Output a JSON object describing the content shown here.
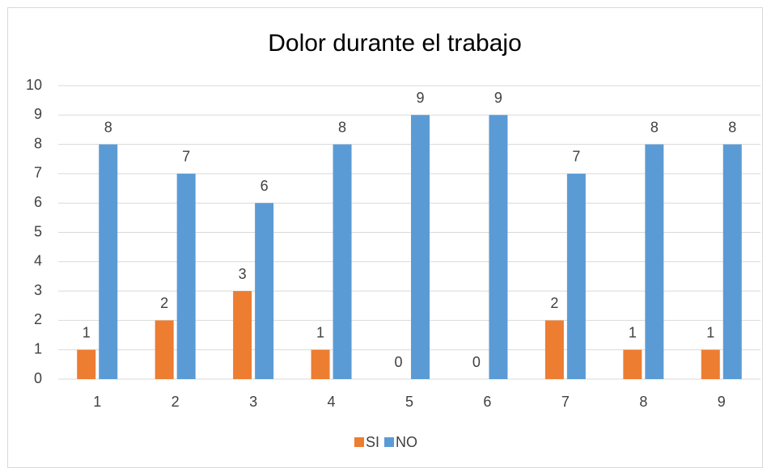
{
  "chart_data": {
    "type": "bar",
    "title": "Dolor durante el trabajo",
    "categories": [
      "1",
      "2",
      "3",
      "4",
      "5",
      "6",
      "7",
      "8",
      "9"
    ],
    "series": [
      {
        "name": "SI",
        "color": "#ed7d31",
        "values": [
          1,
          2,
          3,
          1,
          0,
          0,
          2,
          1,
          1
        ]
      },
      {
        "name": "NO",
        "color": "#5b9bd5",
        "values": [
          8,
          7,
          6,
          8,
          9,
          9,
          7,
          8,
          8
        ]
      }
    ],
    "ylim": [
      0,
      10
    ],
    "yticks": [
      0,
      1,
      2,
      3,
      4,
      5,
      6,
      7,
      8,
      9,
      10
    ],
    "grid": true,
    "legend": "bottom"
  }
}
